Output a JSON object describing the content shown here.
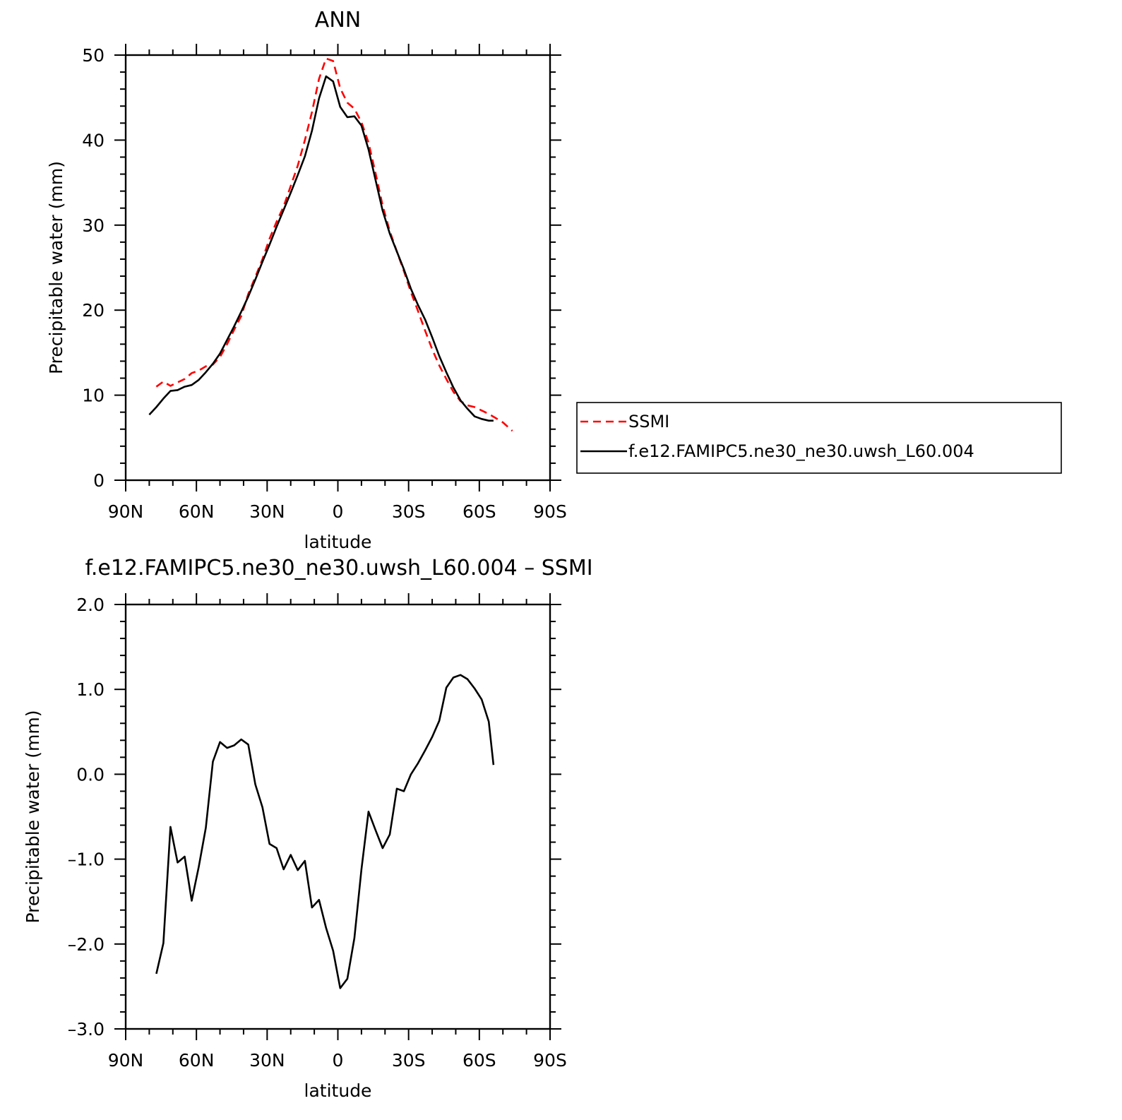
{
  "chart_data": [
    {
      "type": "line",
      "title": "ANN",
      "xlabel": "latitude",
      "ylabel": "Precipitable water (mm)",
      "xlim": [
        90,
        -90
      ],
      "ylim": [
        0,
        50
      ],
      "x_ticks": [
        90,
        60,
        30,
        0,
        -30,
        -60,
        -90
      ],
      "x_tick_labels": [
        "90N",
        "60N",
        "30N",
        "0",
        "30S",
        "60S",
        "90S"
      ],
      "y_ticks": [
        0,
        10,
        20,
        30,
        40,
        50
      ],
      "y_tick_labels": [
        "0",
        "10",
        "20",
        "30",
        "40",
        "50"
      ],
      "legend": {
        "placement": "right, outside plot area"
      },
      "series": [
        {
          "name": "SSMI",
          "color": "#ff0000",
          "style": "dashed",
          "x": [
            77,
            74,
            71,
            68,
            65,
            62,
            59,
            56,
            53,
            50,
            47,
            44,
            41,
            38,
            35,
            32,
            29,
            26,
            23,
            20,
            17,
            14,
            11,
            8,
            5,
            2,
            -1,
            -4,
            -7,
            -10,
            -13,
            -16,
            -19,
            -22,
            -25,
            -28,
            -31,
            -34,
            -37,
            -40,
            -43,
            -46,
            -49,
            -52,
            -55,
            -58,
            -61,
            -64,
            -67,
            -70,
            -74
          ],
          "y": [
            11.0,
            11.6,
            11.1,
            11.5,
            11.9,
            12.6,
            12.9,
            13.4,
            13.6,
            14.5,
            16.0,
            17.7,
            19.3,
            21.9,
            23.9,
            26.0,
            28.4,
            30.4,
            32.2,
            34.6,
            37.0,
            40.0,
            43.3,
            47.2,
            49.6,
            49.3,
            46.1,
            44.4,
            43.7,
            42.1,
            39.7,
            36.1,
            32.3,
            29.3,
            26.9,
            24.6,
            22.1,
            19.9,
            17.6,
            15.4,
            13.5,
            11.9,
            10.4,
            9.3,
            8.8,
            8.6,
            8.2,
            7.8,
            7.3,
            6.8,
            5.8
          ]
        },
        {
          "name": "f.e12.FAMIPC5.ne30_ne30.uwsh_L60.004",
          "color": "#000000",
          "style": "solid",
          "x": [
            80,
            77,
            74,
            71,
            68,
            65,
            62,
            59,
            56,
            53,
            50,
            47,
            44,
            41,
            38,
            35,
            32,
            29,
            26,
            23,
            20,
            17,
            14,
            11,
            8,
            5,
            2,
            -1,
            -4,
            -7,
            -10,
            -13,
            -16,
            -19,
            -22,
            -25,
            -28,
            -31,
            -34,
            -37,
            -40,
            -43,
            -46,
            -49,
            -52,
            -55,
            -58,
            -61,
            -64,
            -66
          ],
          "y": [
            7.7,
            8.6,
            9.6,
            10.5,
            10.6,
            11.0,
            11.2,
            11.8,
            12.7,
            13.7,
            14.9,
            16.5,
            18.1,
            19.8,
            21.6,
            23.6,
            25.7,
            27.7,
            29.8,
            31.8,
            33.8,
            35.9,
            38.1,
            41.1,
            44.9,
            47.5,
            46.9,
            43.9,
            42.7,
            42.8,
            41.7,
            38.9,
            35.3,
            31.7,
            29.0,
            26.9,
            24.8,
            22.5,
            20.6,
            18.9,
            16.8,
            14.6,
            12.7,
            10.9,
            9.4,
            8.4,
            7.5,
            7.2,
            7.0,
            7.0
          ]
        }
      ]
    },
    {
      "type": "line",
      "title": "f.e12.FAMIPC5.ne30_ne30.uwsh_L60.004 – SSMI",
      "xlabel": "latitude",
      "ylabel": "Precipitable water (mm)",
      "xlim": [
        90,
        -90
      ],
      "ylim": [
        -3.0,
        2.0
      ],
      "x_ticks": [
        90,
        60,
        30,
        0,
        -30,
        -60,
        -90
      ],
      "x_tick_labels": [
        "90N",
        "60N",
        "30N",
        "0",
        "30S",
        "60S",
        "90S"
      ],
      "y_ticks": [
        -3.0,
        -2.0,
        -1.0,
        0.0,
        1.0,
        2.0
      ],
      "y_tick_labels": [
        "–3.0",
        "–2.0",
        "–1.0",
        "0.0",
        "1.0",
        "2.0"
      ],
      "series": [
        {
          "color": "#000000",
          "style": "solid",
          "x": [
            77,
            74,
            71,
            68,
            65,
            62,
            59,
            56,
            53,
            50,
            47,
            44,
            41,
            38,
            35,
            32,
            29,
            26,
            23,
            20,
            17,
            14,
            11,
            8,
            5,
            2,
            -1,
            -4,
            -7,
            -10,
            -13,
            -16,
            -19,
            -22,
            -25,
            -28,
            -31,
            -34,
            -37,
            -40,
            -43,
            -46,
            -49,
            -52,
            -55,
            -58,
            -61,
            -64,
            -66
          ],
          "y": [
            -2.35,
            -1.99,
            -0.62,
            -1.04,
            -0.97,
            -1.49,
            -1.09,
            -0.63,
            0.15,
            0.38,
            0.31,
            0.34,
            0.41,
            0.35,
            -0.12,
            -0.39,
            -0.82,
            -0.87,
            -1.12,
            -0.95,
            -1.13,
            -1.02,
            -1.57,
            -1.48,
            -1.81,
            -2.08,
            -2.52,
            -2.41,
            -1.93,
            -1.12,
            -0.44,
            -0.66,
            -0.87,
            -0.71,
            -0.17,
            -0.2,
            0.0,
            0.13,
            0.28,
            0.44,
            0.63,
            1.02,
            1.14,
            1.17,
            1.12,
            1.01,
            0.88,
            0.62,
            0.11
          ]
        }
      ]
    }
  ]
}
